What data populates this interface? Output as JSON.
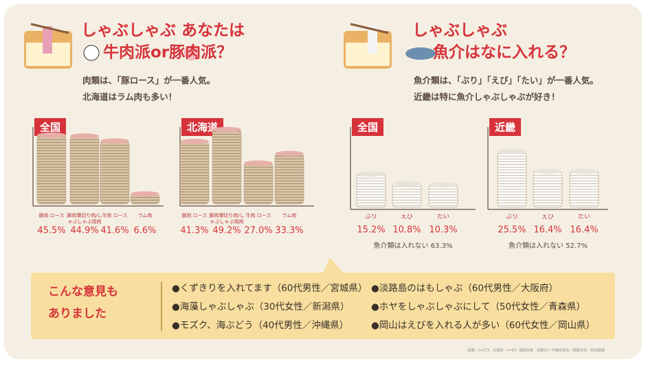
{
  "panels": [
    {
      "title_lines": [
        "しゃぶしゃぶ あなたは",
        "牛肉派or豚肉派？"
      ],
      "notes": [
        "肉類は、「豚ロース」が一番人気。",
        "北海道はラム肉も多い！"
      ]
    },
    {
      "title_lines": [
        "しゃぶしゃぶ",
        "魚介はなに入れる？"
      ],
      "notes": [
        "魚介類は、「ぶり」「えび」「たい」が一番人気。",
        "近畿は特に魚介しゃぶしゃぶが好き！"
      ]
    }
  ],
  "chart_data": [
    {
      "type": "bar",
      "title": "全国",
      "categories": [
        "豚肉 ロース",
        "豚肉薄切り肉/しゃぶしゃぶ用肉",
        "牛肉 ロース",
        "ラム肉"
      ],
      "values": [
        45.5,
        44.9,
        41.6,
        6.6
      ],
      "value_labels": [
        "45.5%",
        "44.9%",
        "41.6%",
        "6.6%"
      ],
      "color": "#d8c4a6"
    },
    {
      "type": "bar",
      "title": "北海道",
      "categories": [
        "豚肉 ロース",
        "豚肉薄切り肉/しゃぶしゃぶ用肉",
        "牛肉 ロース",
        "ラム肉"
      ],
      "values": [
        41.3,
        49.2,
        27.0,
        33.3
      ],
      "value_labels": [
        "41.3%",
        "49.2%",
        "27.0%",
        "33.3%"
      ],
      "color": "#d8c4a6"
    },
    {
      "type": "bar",
      "title": "全国",
      "categories": [
        "ぶり",
        "えび",
        "たい"
      ],
      "values": [
        15.2,
        10.8,
        10.3
      ],
      "value_labels": [
        "15.2%",
        "10.8%",
        "10.3%"
      ],
      "color": "#d8c4a6",
      "note": "魚介類は入れない 63.3%"
    },
    {
      "type": "bar",
      "title": "近畿",
      "categories": [
        "ぶり",
        "えび",
        "たい"
      ],
      "values": [
        25.5,
        16.4,
        16.4
      ],
      "value_labels": [
        "25.5%",
        "16.4%",
        "16.4%"
      ],
      "color": "#d8c4a6",
      "note": "魚介類は入れない 52.7%"
    }
  ],
  "comments": {
    "heading": [
      "こんな意見も",
      "ありました"
    ],
    "items": [
      "●くずきりを入れてます（60代男性／宮城県）",
      "●海藻しゃぶしゃぶ（30代女性／新潟県）",
      "●モズク、海ぶどう（40代男性／沖縄県）",
      "●淡路島のはもしゃぶ（60代男性／大阪府）",
      "●ホヤをしゃぶしゃぶにして（50代女性／青森県）",
      "●岡山はえびを入れる人が多い（60代女性／岡山県）"
    ]
  },
  "footnote": "全国：n=573、北海道：n=63／調査対象：全国15〜79歳の男女／調査方法：WEB調査"
}
